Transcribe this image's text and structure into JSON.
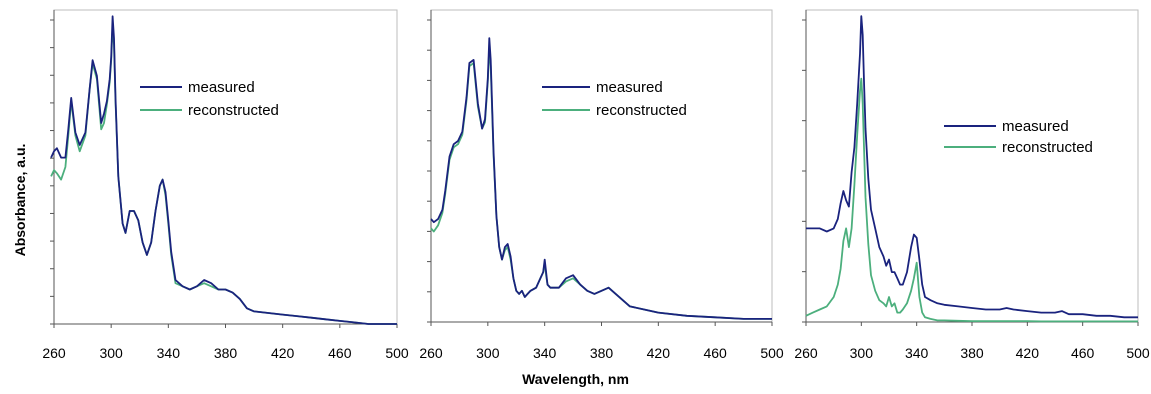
{
  "figure": {
    "ylabel": "Absorbance, a.u.",
    "xlabel": "Wavelength, nm"
  },
  "chart_data": [
    {
      "type": "line",
      "xlim": [
        260,
        500
      ],
      "xticks": [
        260,
        300,
        340,
        380,
        420,
        460,
        500
      ],
      "ylim": [
        0,
        1
      ],
      "legend": "top-right",
      "grid": false,
      "colors": {
        "measured": "#1a237e",
        "reconstructed": "#4caf7d"
      },
      "series": [
        {
          "name": "measured",
          "x": [
            258,
            260,
            262,
            265,
            268,
            270,
            272,
            275,
            278,
            282,
            285,
            287,
            290,
            293,
            295,
            297,
            299,
            300,
            301,
            302,
            303,
            305,
            308,
            310,
            313,
            316,
            319,
            322,
            325,
            328,
            331,
            334,
            336,
            338,
            340,
            342,
            345,
            350,
            355,
            360,
            365,
            370,
            375,
            380,
            385,
            390,
            395,
            400,
            410,
            420,
            430,
            440,
            450,
            460,
            470,
            480,
            500
          ],
          "y": [
            0.53,
            0.55,
            0.56,
            0.53,
            0.53,
            0.62,
            0.72,
            0.61,
            0.57,
            0.61,
            0.75,
            0.84,
            0.79,
            0.64,
            0.67,
            0.71,
            0.78,
            0.85,
            0.98,
            0.91,
            0.72,
            0.47,
            0.32,
            0.29,
            0.36,
            0.36,
            0.33,
            0.26,
            0.22,
            0.26,
            0.36,
            0.44,
            0.46,
            0.42,
            0.33,
            0.23,
            0.14,
            0.12,
            0.11,
            0.12,
            0.14,
            0.13,
            0.11,
            0.11,
            0.1,
            0.08,
            0.05,
            0.04,
            0.035,
            0.03,
            0.025,
            0.02,
            0.015,
            0.01,
            0.005,
            0.0,
            0.0
          ]
        },
        {
          "name": "reconstructed",
          "x": [
            258,
            260,
            262,
            265,
            268,
            270,
            272,
            275,
            278,
            282,
            285,
            287,
            290,
            293,
            295,
            297,
            299,
            300,
            301,
            302,
            303,
            305,
            308,
            310,
            313,
            316,
            319,
            322,
            325,
            328,
            331,
            334,
            336,
            338,
            340,
            342,
            345,
            350,
            355,
            360,
            365,
            370,
            375,
            380,
            385,
            390,
            395,
            400,
            410,
            420,
            430,
            440,
            450,
            460,
            470,
            480,
            500
          ],
          "y": [
            0.47,
            0.49,
            0.48,
            0.46,
            0.5,
            0.6,
            0.71,
            0.6,
            0.55,
            0.6,
            0.75,
            0.83,
            0.78,
            0.62,
            0.64,
            0.7,
            0.77,
            0.84,
            0.95,
            0.89,
            0.71,
            0.47,
            0.32,
            0.29,
            0.36,
            0.36,
            0.33,
            0.26,
            0.22,
            0.26,
            0.36,
            0.44,
            0.46,
            0.41,
            0.32,
            0.22,
            0.13,
            0.12,
            0.11,
            0.12,
            0.13,
            0.12,
            0.11,
            0.11,
            0.1,
            0.08,
            0.05,
            0.04,
            0.035,
            0.03,
            0.025,
            0.02,
            0.015,
            0.01,
            0.005,
            0.0,
            0.0
          ]
        }
      ]
    },
    {
      "type": "line",
      "xlim": [
        260,
        500
      ],
      "xticks": [
        260,
        300,
        340,
        380,
        420,
        460,
        500
      ],
      "ylim": [
        0,
        1
      ],
      "legend": "top-right",
      "grid": false,
      "colors": {
        "measured": "#1a237e",
        "reconstructed": "#4caf7d"
      },
      "series": [
        {
          "name": "measured",
          "x": [
            260,
            262,
            265,
            268,
            270,
            273,
            276,
            279,
            282,
            285,
            287,
            290,
            293,
            296,
            298,
            300,
            301,
            302,
            304,
            306,
            308,
            310,
            312,
            314,
            316,
            318,
            320,
            322,
            324,
            326,
            328,
            330,
            334,
            337,
            339,
            340,
            341,
            342,
            344,
            346,
            350,
            355,
            360,
            365,
            370,
            375,
            380,
            385,
            390,
            395,
            400,
            410,
            420,
            440,
            460,
            480,
            500
          ],
          "y": [
            0.33,
            0.32,
            0.33,
            0.36,
            0.42,
            0.53,
            0.57,
            0.58,
            0.61,
            0.72,
            0.83,
            0.84,
            0.7,
            0.62,
            0.65,
            0.78,
            0.91,
            0.84,
            0.55,
            0.34,
            0.24,
            0.2,
            0.24,
            0.25,
            0.21,
            0.14,
            0.1,
            0.09,
            0.1,
            0.08,
            0.09,
            0.1,
            0.11,
            0.14,
            0.16,
            0.2,
            0.16,
            0.12,
            0.11,
            0.11,
            0.11,
            0.14,
            0.15,
            0.12,
            0.1,
            0.09,
            0.1,
            0.11,
            0.09,
            0.07,
            0.05,
            0.04,
            0.03,
            0.02,
            0.015,
            0.01,
            0.01
          ]
        },
        {
          "name": "reconstructed",
          "x": [
            260,
            262,
            265,
            268,
            270,
            273,
            276,
            279,
            282,
            285,
            287,
            290,
            293,
            296,
            298,
            300,
            301,
            302,
            304,
            306,
            308,
            310,
            312,
            314,
            316,
            318,
            320,
            322,
            324,
            326,
            328,
            330,
            334,
            337,
            339,
            340,
            341,
            342,
            344,
            346,
            350,
            355,
            360,
            365,
            370,
            375,
            380,
            385,
            390,
            395,
            400,
            410,
            420,
            440,
            460,
            480,
            500
          ],
          "y": [
            0.3,
            0.29,
            0.31,
            0.35,
            0.41,
            0.52,
            0.56,
            0.57,
            0.6,
            0.71,
            0.82,
            0.83,
            0.69,
            0.62,
            0.64,
            0.77,
            0.88,
            0.82,
            0.54,
            0.34,
            0.24,
            0.2,
            0.23,
            0.24,
            0.2,
            0.14,
            0.1,
            0.09,
            0.1,
            0.08,
            0.09,
            0.1,
            0.11,
            0.14,
            0.16,
            0.19,
            0.15,
            0.12,
            0.11,
            0.11,
            0.11,
            0.13,
            0.14,
            0.12,
            0.1,
            0.09,
            0.1,
            0.11,
            0.09,
            0.07,
            0.05,
            0.04,
            0.03,
            0.02,
            0.015,
            0.01,
            0.01
          ]
        }
      ]
    },
    {
      "type": "line",
      "xlim": [
        260,
        500
      ],
      "xticks": [
        260,
        300,
        340,
        380,
        420,
        460,
        500
      ],
      "ylim": [
        0,
        1
      ],
      "legend": "right",
      "grid": false,
      "colors": {
        "measured": "#1a237e",
        "reconstructed": "#4caf7d"
      },
      "series": [
        {
          "name": "measured",
          "x": [
            260,
            265,
            270,
            275,
            280,
            283,
            285,
            287,
            289,
            291,
            293,
            295,
            297,
            299,
            300,
            301,
            302,
            303,
            305,
            307,
            310,
            313,
            316,
            318,
            320,
            322,
            324,
            326,
            328,
            330,
            333,
            336,
            338,
            340,
            342,
            344,
            346,
            350,
            355,
            360,
            370,
            380,
            390,
            400,
            405,
            410,
            420,
            430,
            440,
            445,
            450,
            460,
            470,
            480,
            490,
            500
          ],
          "y": [
            0.3,
            0.3,
            0.3,
            0.29,
            0.3,
            0.33,
            0.38,
            0.42,
            0.39,
            0.37,
            0.48,
            0.56,
            0.7,
            0.86,
            0.98,
            0.92,
            0.76,
            0.62,
            0.46,
            0.36,
            0.3,
            0.24,
            0.21,
            0.18,
            0.2,
            0.16,
            0.16,
            0.14,
            0.12,
            0.12,
            0.16,
            0.24,
            0.28,
            0.27,
            0.2,
            0.12,
            0.08,
            0.07,
            0.06,
            0.055,
            0.05,
            0.045,
            0.04,
            0.04,
            0.045,
            0.04,
            0.035,
            0.03,
            0.03,
            0.035,
            0.025,
            0.025,
            0.02,
            0.02,
            0.015,
            0.015
          ]
        },
        {
          "name": "reconstructed",
          "x": [
            260,
            265,
            270,
            275,
            280,
            283,
            285,
            287,
            289,
            291,
            293,
            295,
            297,
            299,
            300,
            301,
            302,
            303,
            305,
            307,
            310,
            313,
            316,
            318,
            320,
            322,
            324,
            326,
            328,
            330,
            333,
            336,
            338,
            340,
            342,
            344,
            346,
            350,
            355,
            360,
            370,
            380,
            390,
            400,
            405,
            410,
            420,
            430,
            440,
            445,
            450,
            460,
            470,
            480,
            490,
            500
          ],
          "y": [
            0.02,
            0.03,
            0.04,
            0.05,
            0.08,
            0.12,
            0.17,
            0.26,
            0.3,
            0.24,
            0.3,
            0.44,
            0.6,
            0.74,
            0.78,
            0.7,
            0.55,
            0.4,
            0.25,
            0.15,
            0.1,
            0.07,
            0.06,
            0.05,
            0.08,
            0.05,
            0.06,
            0.03,
            0.03,
            0.04,
            0.06,
            0.1,
            0.14,
            0.19,
            0.08,
            0.03,
            0.015,
            0.01,
            0.005,
            0.005,
            0.004,
            0.003,
            0.003,
            0.003,
            0.003,
            0.003,
            0.003,
            0.002,
            0.002,
            0.002,
            0.002,
            0.002,
            0.002,
            0.002,
            0.002,
            0.002
          ]
        }
      ]
    }
  ]
}
